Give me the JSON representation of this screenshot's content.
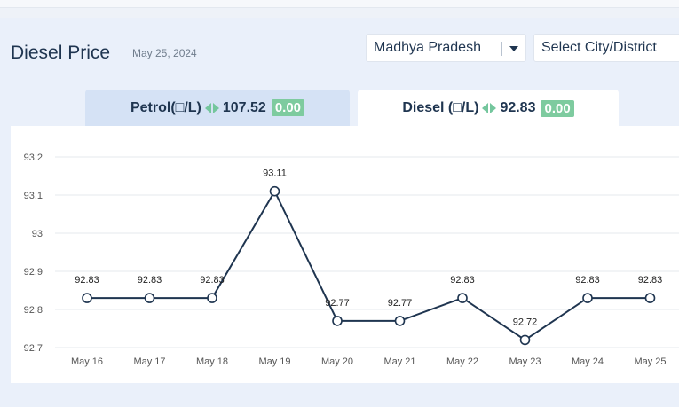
{
  "header": {
    "title": "Diesel Price",
    "date": "May 25, 2024"
  },
  "filters": {
    "state": "Madhya Pradesh",
    "city": "Select City/District"
  },
  "tabs": {
    "petrol": {
      "label": "Petrol(□/L)",
      "price": "107.52",
      "change": "0.00"
    },
    "diesel": {
      "label": "Diesel (□/L)",
      "price": "92.83",
      "change": "0.00"
    }
  },
  "chart_data": {
    "type": "line",
    "categories": [
      "May 16",
      "May 17",
      "May 18",
      "May 19",
      "May 20",
      "May 21",
      "May 22",
      "May 23",
      "May 24",
      "May 25"
    ],
    "values": [
      92.83,
      92.83,
      92.83,
      93.11,
      92.77,
      92.77,
      92.83,
      92.72,
      92.83,
      92.83
    ],
    "data_labels": [
      "92.83",
      "92.83",
      "92.83",
      "93.11",
      "92.77",
      "92.77",
      "92.83",
      "92.72",
      "92.83",
      "92.83"
    ],
    "y_ticks": [
      "92.7",
      "92.8",
      "92.9",
      "93",
      "93.1",
      "93.2"
    ],
    "ylim": [
      92.7,
      93.2
    ],
    "grid": true,
    "line_color": "#1f3550"
  }
}
